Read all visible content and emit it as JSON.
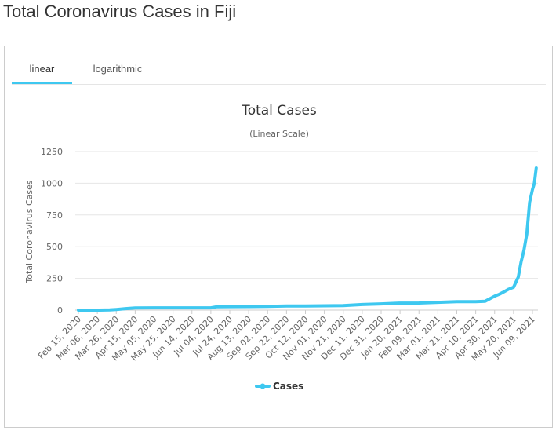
{
  "page": {
    "title": "Total Coronavirus Cases in Fiji"
  },
  "tabs": [
    {
      "label": "linear",
      "active": true
    },
    {
      "label": "logarithmic",
      "active": false
    }
  ],
  "colors": {
    "series": "#3ec8f0",
    "tab_underline": "#3ec8f0"
  },
  "chart_data": {
    "type": "line",
    "title": "Total Cases",
    "subtitle": "(Linear Scale)",
    "ylabel": "Total Coronavirus Cases",
    "xlabel": "",
    "ylim": [
      0,
      1250
    ],
    "yticks": [
      0,
      250,
      500,
      750,
      1000,
      1250
    ],
    "xticks": [
      "Feb 15, 2020",
      "Mar 06, 2020",
      "Mar 26, 2020",
      "Apr 15, 2020",
      "May 05, 2020",
      "May 25, 2020",
      "Jun 14, 2020",
      "Jul 04, 2020",
      "Jul 24, 2020",
      "Aug 13, 2020",
      "Sep 02, 2020",
      "Sep 22, 2020",
      "Oct 12, 2020",
      "Nov 01, 2020",
      "Nov 21, 2020",
      "Dec 11, 2020",
      "Dec 31, 2020",
      "Jan 20, 2021",
      "Feb 09, 2021",
      "Mar 01, 2021",
      "Mar 21, 2021",
      "Apr 10, 2021",
      "Apr 30, 2021",
      "May 20, 2021",
      "Jun 09, 2021"
    ],
    "grid": true,
    "legend": "bottom-center",
    "series": [
      {
        "name": "Cases",
        "x": [
          "Feb 15, 2020",
          "Mar 06, 2020",
          "Mar 19, 2020",
          "Mar 26, 2020",
          "Apr 05, 2020",
          "Apr 15, 2020",
          "May 05, 2020",
          "May 25, 2020",
          "Jun 14, 2020",
          "Jul 04, 2020",
          "Jul 10, 2020",
          "Jul 24, 2020",
          "Aug 13, 2020",
          "Sep 02, 2020",
          "Sep 22, 2020",
          "Oct 12, 2020",
          "Nov 01, 2020",
          "Nov 21, 2020",
          "Dec 11, 2020",
          "Dec 31, 2020",
          "Jan 20, 2021",
          "Feb 09, 2021",
          "Mar 01, 2021",
          "Mar 21, 2021",
          "Apr 10, 2021",
          "Apr 20, 2021",
          "Apr 25, 2021",
          "Apr 30, 2021",
          "May 05, 2021",
          "May 10, 2021",
          "May 15, 2021",
          "May 20, 2021",
          "May 25, 2021",
          "May 28, 2021",
          "May 31, 2021",
          "Jun 03, 2021",
          "Jun 06, 2021",
          "Jun 09, 2021",
          "Jun 11, 2021",
          "Jun 13, 2021"
        ],
        "y": [
          0,
          0,
          1,
          5,
          12,
          17,
          18,
          18,
          18,
          18,
          26,
          27,
          28,
          30,
          32,
          33,
          34,
          35,
          44,
          49,
          55,
          56,
          61,
          67,
          67,
          70,
          90,
          110,
          125,
          145,
          165,
          180,
          260,
          380,
          470,
          600,
          850,
          950,
          1000,
          1120
        ]
      }
    ]
  }
}
